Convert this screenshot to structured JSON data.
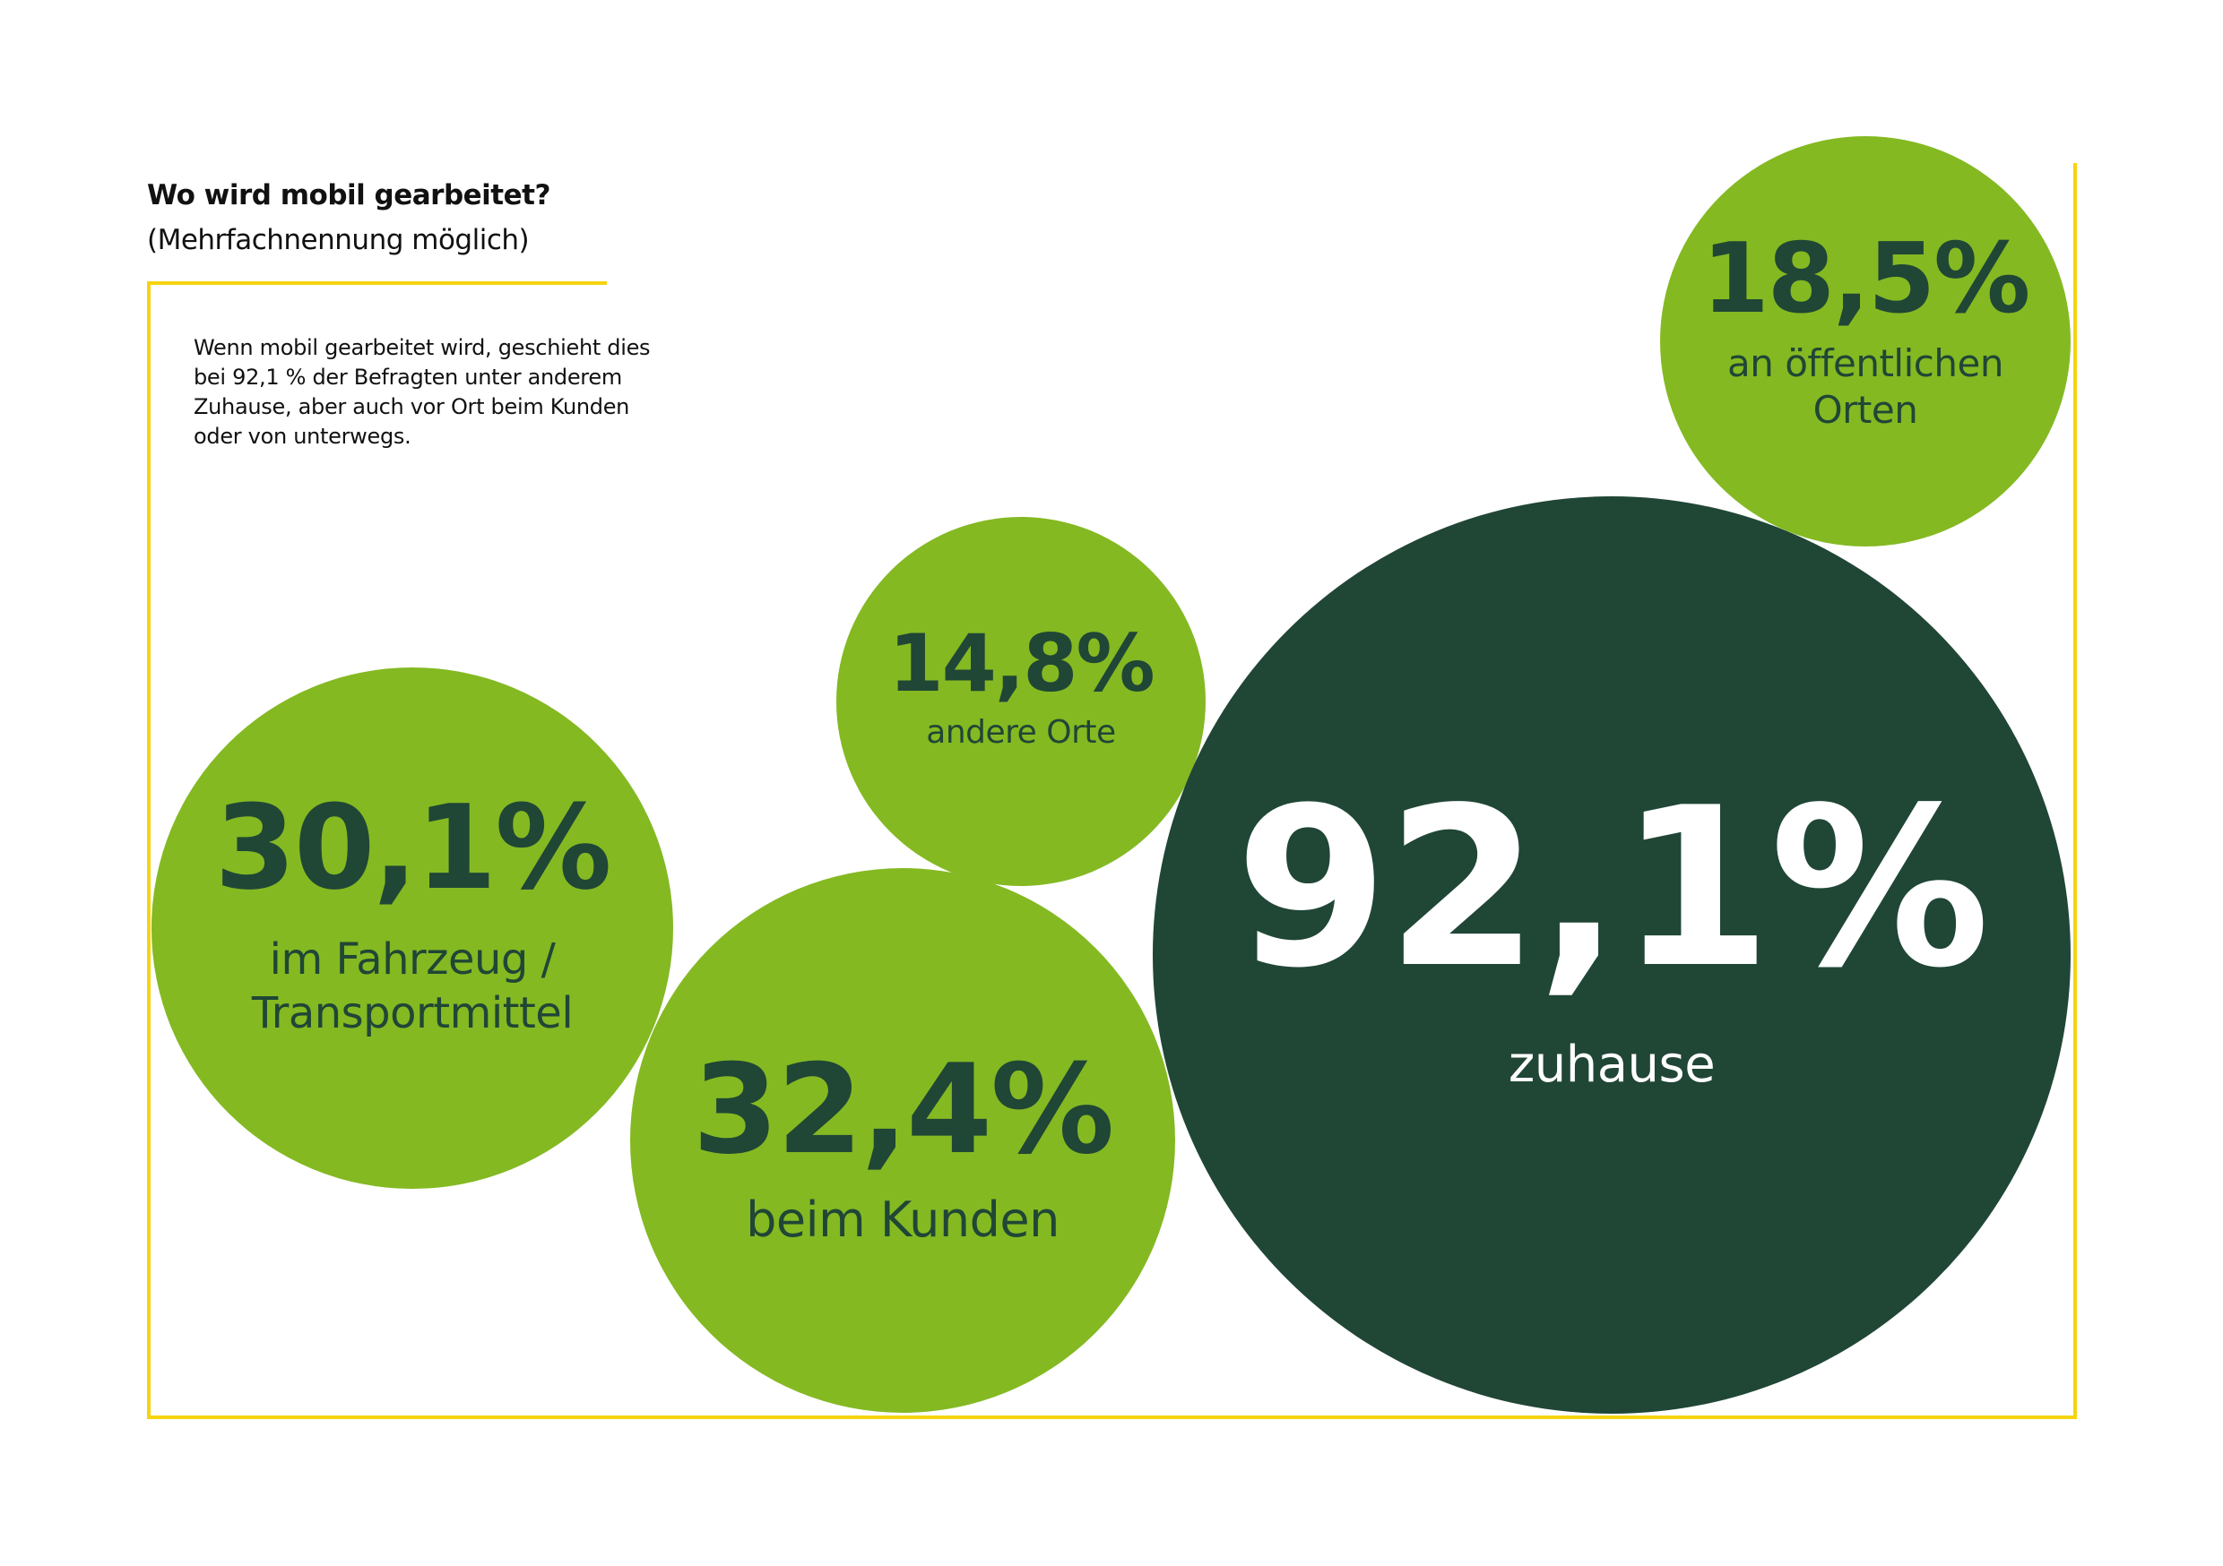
{
  "colors": {
    "accent_green": "#84b922",
    "dark_green": "#204636",
    "frame_yellow": "#f5d40f",
    "text_dark": "#204636",
    "text_light": "#ffffff"
  },
  "header": {
    "title": "Wo wird mobil gearbeitet?",
    "subtitle": "(Mehrfachnennung möglich)"
  },
  "note": "Wenn mobil gearbeitet wird, geschieht dies bei 92,1 % der Befragten unter anderem Zuhause, aber auch vor Ort beim Kunden oder von unterwegs.",
  "chart_data": {
    "type": "scatter",
    "subtype": "bubble",
    "title": "Wo wird mobil gearbeitet?",
    "subtitle": "(Mehrfachnennung möglich)",
    "unit": "%",
    "series": [
      {
        "name": "an öffentlichen Orten",
        "value": 18.5,
        "display": "18,5%",
        "label": "an öffentlichen Orten"
      },
      {
        "name": "andere Orte",
        "value": 14.8,
        "display": "14,8%",
        "label": "andere Orte"
      },
      {
        "name": "im Fahrzeug / Transportmittel",
        "value": 30.1,
        "display": "30,1%",
        "label": "im Fahrzeug / Transportmittel"
      },
      {
        "name": "beim Kunden",
        "value": 32.4,
        "display": "32,4%",
        "label": "beim Kunden"
      },
      {
        "name": "zuhause",
        "value": 92.1,
        "display": "92,1%",
        "label": "zuhause"
      }
    ]
  }
}
